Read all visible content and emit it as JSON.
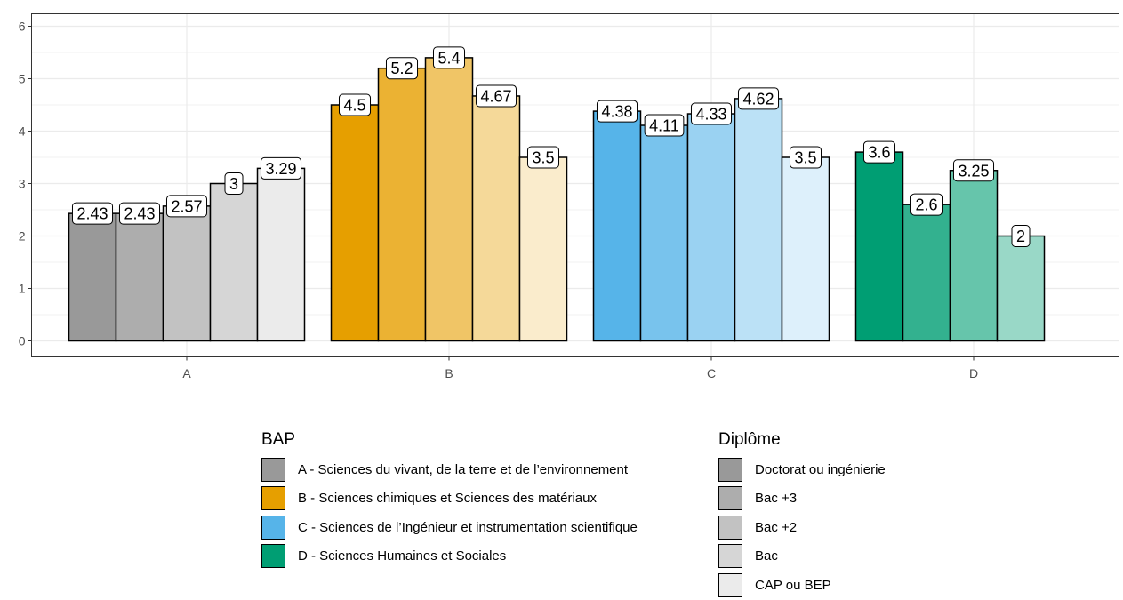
{
  "chart_data": {
    "type": "bar",
    "categories": [
      "A",
      "B",
      "C",
      "D"
    ],
    "ylim": [
      0,
      6.25
    ],
    "yticks": [
      0,
      1,
      2,
      3,
      4,
      5,
      6
    ],
    "grid": true,
    "legend_position": "bottom",
    "groups": [
      {
        "category": "A",
        "values": [
          2.43,
          2.43,
          2.57,
          3,
          3.29
        ],
        "labels": [
          "2.43",
          "2.43",
          "2.57",
          "3",
          "3.29"
        ],
        "colors": [
          "#999999",
          "#adadad",
          "#c2c2c2",
          "#d6d6d6",
          "#ebebeb"
        ]
      },
      {
        "category": "B",
        "values": [
          4.5,
          5.2,
          5.4,
          4.67,
          3.5
        ],
        "labels": [
          "4.5",
          "5.2",
          "5.4",
          "4.67",
          "3.5"
        ],
        "colors": [
          "#e69f00",
          "#ebb233",
          "#f0c566",
          "#f5d999",
          "#faeccc"
        ]
      },
      {
        "category": "C",
        "values": [
          4.38,
          4.11,
          4.33,
          4.62,
          3.5
        ],
        "labels": [
          "4.38",
          "4.11",
          "4.33",
          "4.62",
          "3.5"
        ],
        "colors": [
          "#56b4e9",
          "#78c3ed",
          "#9ad2f2",
          "#bbe1f6",
          "#ddf0fb"
        ]
      },
      {
        "category": "D",
        "values": [
          3.6,
          2.6,
          3.25,
          2
        ],
        "labels": [
          "3.6",
          "2.6",
          "3.25",
          "2"
        ],
        "colors": [
          "#009e73",
          "#33b18f",
          "#66c5ab",
          "#99d8c7"
        ]
      }
    ]
  },
  "legend_bap": {
    "title": "BAP",
    "items": [
      {
        "label": "A - Sciences du vivant, de la terre et de l’environnement",
        "color": "#999999"
      },
      {
        "label": "B - Sciences chimiques et Sciences des matériaux",
        "color": "#e69f00"
      },
      {
        "label": "C - Sciences de l’Ingénieur et instrumentation scientifique",
        "color": "#56b4e9"
      },
      {
        "label": "D - Sciences Humaines et Sociales",
        "color": "#009e73"
      }
    ]
  },
  "legend_diplome": {
    "title": "Diplôme",
    "items": [
      {
        "label": "Doctorat ou ingénierie",
        "color": "#999999"
      },
      {
        "label": "Bac +3",
        "color": "#adadad"
      },
      {
        "label": "Bac +2",
        "color": "#c2c2c2"
      },
      {
        "label": "Bac",
        "color": "#d6d6d6"
      },
      {
        "label": "CAP ou BEP",
        "color": "#ebebeb"
      }
    ]
  }
}
